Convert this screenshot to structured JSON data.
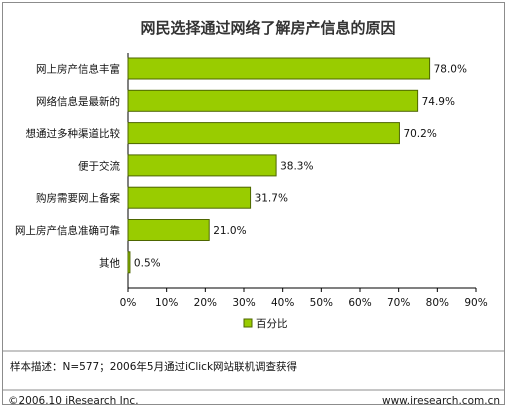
{
  "chart_data": {
    "type": "bar",
    "orientation": "horizontal",
    "title": "网民选择通过网络了解房产信息的原因",
    "categories": [
      "网上房产信息丰富",
      "网络信息是最新的",
      "想通过多种渠道比较",
      "便于交流",
      "购房需要网上备案",
      "网上房产信息准确可靠",
      "其他"
    ],
    "value_labels": [
      "78.0%",
      "74.9%",
      "70.2%",
      "38.3%",
      "31.7%",
      "21.0%",
      "0.5%"
    ],
    "series": [
      {
        "name": "百分比",
        "values": [
          78.0,
          74.9,
          70.2,
          38.3,
          31.7,
          21.0,
          0.5
        ]
      }
    ],
    "xlim": [
      0,
      90
    ],
    "xticks": [
      "0%",
      "10%",
      "20%",
      "30%",
      "40%",
      "50%",
      "60%",
      "70%",
      "80%",
      "90%"
    ],
    "grid": false,
    "legend_position": "bottom-center",
    "bar_color": "#99cc00",
    "bar_border_color": "#4d6600"
  },
  "note": "样本描述：N=577；2006年5月通过iClick网站联机调查获得",
  "footer": {
    "copyright": "©2006.10 iResearch Inc.",
    "website": "www.iresearch.com.cn"
  }
}
